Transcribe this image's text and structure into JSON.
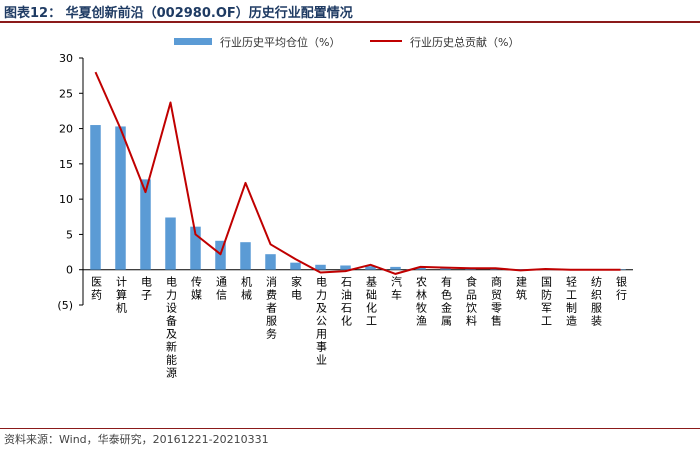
{
  "header": {
    "title": "图表12：  华夏创新前沿（002980.OF）历史行业配置情况"
  },
  "footer": {
    "source": "资料来源：Wind，华泰研究，20161221-20210331"
  },
  "colors": {
    "bar": "#5b9bd5",
    "line": "#c00000",
    "title": "#1f3b63",
    "rule": "#8b1a1a"
  },
  "chart_data": {
    "type": "bar",
    "categories": [
      "医药",
      "计算机",
      "电子",
      "电力设备及新能源",
      "传媒",
      "通信",
      "机械",
      "消费者服务",
      "家电",
      "电力及公用事业",
      "石油石化",
      "基础化工",
      "汽车",
      "农林牧渔",
      "有色金属",
      "食品饮料",
      "商贸零售",
      "建筑",
      "国防军工",
      "轻工制造",
      "纺织服装",
      "银行"
    ],
    "series": [
      {
        "name": "行业历史平均仓位（%）",
        "kind": "bar",
        "values": [
          20.5,
          20.3,
          12.8,
          7.4,
          6.1,
          4.1,
          3.9,
          2.2,
          1.0,
          0.7,
          0.6,
          0.5,
          0.4,
          0.3,
          0.3,
          0.2,
          0.2,
          0.1,
          0.1,
          0.1,
          0.1,
          0.05
        ]
      },
      {
        "name": "行业历史总贡献（%）",
        "kind": "line",
        "values": [
          28.0,
          20.0,
          11.0,
          23.7,
          5.0,
          2.2,
          12.3,
          3.6,
          1.5,
          -0.4,
          -0.2,
          0.7,
          -0.6,
          0.4,
          0.3,
          0.2,
          0.2,
          -0.1,
          0.1,
          0.0,
          0.0,
          0.0
        ]
      }
    ],
    "yticks": [
      "30",
      "25",
      "20",
      "15",
      "10",
      "5",
      "0",
      "(5)"
    ],
    "ylim": [
      -5,
      30
    ],
    "grid": false,
    "legend_position": "top"
  }
}
